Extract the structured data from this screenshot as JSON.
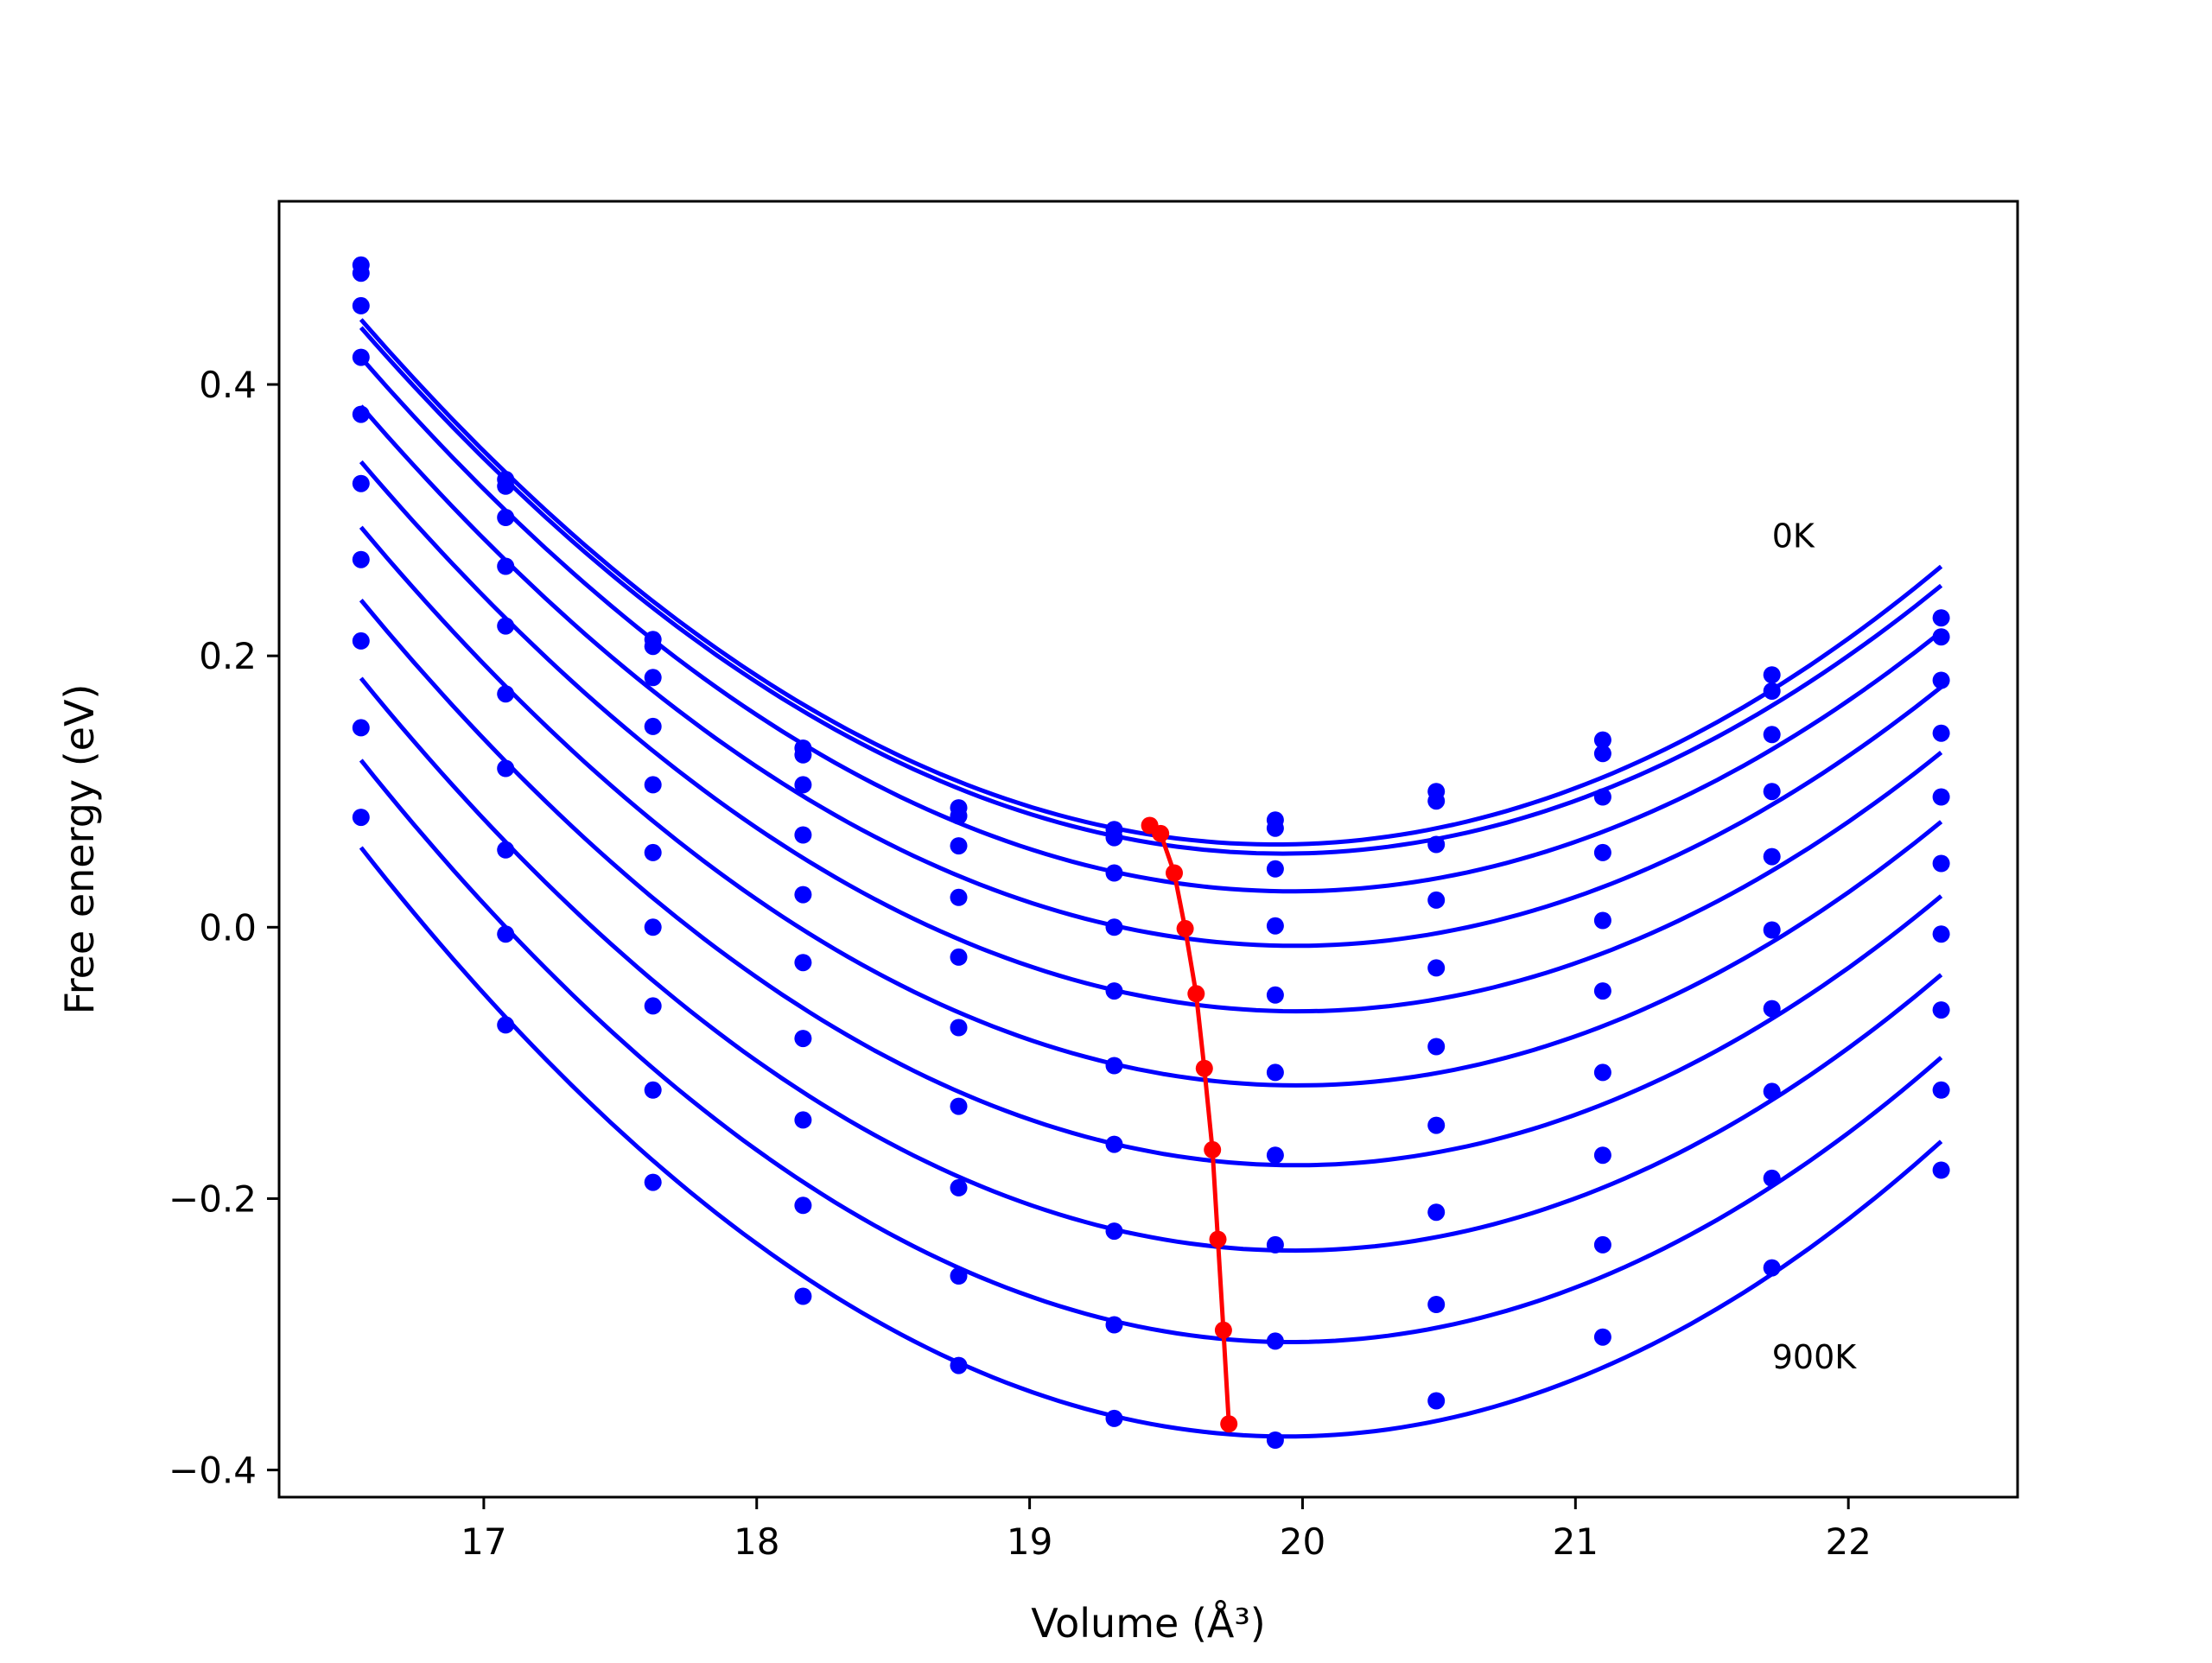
{
  "chart_data": {
    "type": "line",
    "xlabel": "Volume (Å³)",
    "ylabel": "Free energy (eV)",
    "xlim": [
      16.25,
      22.62
    ],
    "ylim": [
      -0.42,
      0.535
    ],
    "x_ticks": [
      17,
      18,
      19,
      20,
      21,
      22
    ],
    "y_ticks": [
      0.4,
      0.2,
      0.0,
      -0.2,
      -0.4
    ],
    "x_tick_labels": [
      "17",
      "18",
      "19",
      "20",
      "21",
      "22"
    ],
    "y_tick_labels": [
      "0.4",
      "0.2",
      "0.0",
      "−0.2",
      "−0.4"
    ],
    "annotations": [
      {
        "text": "0K",
        "x": 21.72,
        "y": 0.28
      },
      {
        "text": "900K",
        "x": 21.72,
        "y": -0.325
      }
    ],
    "grid": false,
    "legend": "none",
    "x": [
      16.55,
      17.08,
      17.62,
      18.17,
      18.74,
      19.31,
      19.9,
      20.49,
      21.1,
      21.72,
      22.34
    ],
    "series": [
      {
        "points": [
          0.488,
          0.33,
          0.212,
          0.132,
          0.088,
          0.072,
          0.079,
          0.1,
          0.138,
          0.186,
          0.228
        ],
        "fit_min": [
          19.44,
          0.075
        ]
      },
      {
        "points": [
          0.482,
          0.325,
          0.207,
          0.127,
          0.082,
          0.066,
          0.073,
          0.093,
          0.128,
          0.174,
          0.214
        ],
        "fit_min": [
          19.48,
          0.069
        ]
      },
      {
        "points": [
          0.458,
          0.302,
          0.184,
          0.105,
          0.06,
          0.04,
          0.043,
          0.061,
          0.096,
          0.142,
          0.182
        ],
        "fit_min": [
          19.53,
          0.04
        ]
      },
      {
        "points": [
          0.42,
          0.266,
          0.148,
          0.068,
          0.022,
          0.0,
          0.001,
          0.02,
          0.055,
          0.1,
          0.143
        ],
        "fit_min": [
          19.57,
          -0.001
        ]
      },
      {
        "points": [
          0.378,
          0.222,
          0.105,
          0.024,
          -0.022,
          -0.047,
          -0.05,
          -0.03,
          0.005,
          0.052,
          0.096
        ],
        "fit_min": [
          19.61,
          -0.049
        ]
      },
      {
        "points": [
          0.327,
          0.172,
          0.055,
          -0.026,
          -0.074,
          -0.102,
          -0.107,
          -0.088,
          -0.047,
          -0.002,
          0.047
        ],
        "fit_min": [
          19.64,
          -0.104
        ]
      },
      {
        "points": [
          0.271,
          0.117,
          0.0,
          -0.082,
          -0.132,
          -0.16,
          -0.168,
          -0.146,
          -0.107,
          -0.06,
          -0.005
        ],
        "fit_min": [
          19.67,
          -0.164
        ]
      },
      {
        "points": [
          0.211,
          0.057,
          -0.058,
          -0.142,
          -0.192,
          -0.224,
          -0.234,
          -0.21,
          -0.168,
          -0.121,
          -0.061
        ],
        "fit_min": [
          19.69,
          -0.23
        ]
      },
      {
        "points": [
          0.147,
          -0.005,
          -0.12,
          -0.205,
          -0.257,
          -0.293,
          -0.305,
          -0.278,
          -0.234,
          -0.185,
          -0.12
        ],
        "fit_min": [
          19.71,
          -0.297
        ]
      },
      {
        "points": [
          0.081,
          -0.072,
          -0.188,
          -0.272,
          -0.323,
          -0.362,
          -0.378,
          -0.349,
          -0.302,
          -0.251,
          -0.179
        ],
        "fit_min": [
          19.73,
          -0.366
        ]
      }
    ],
    "colors": {
      "fits": "#0000ff",
      "minimum_path": "#ff0000",
      "frame": "#000000"
    }
  }
}
